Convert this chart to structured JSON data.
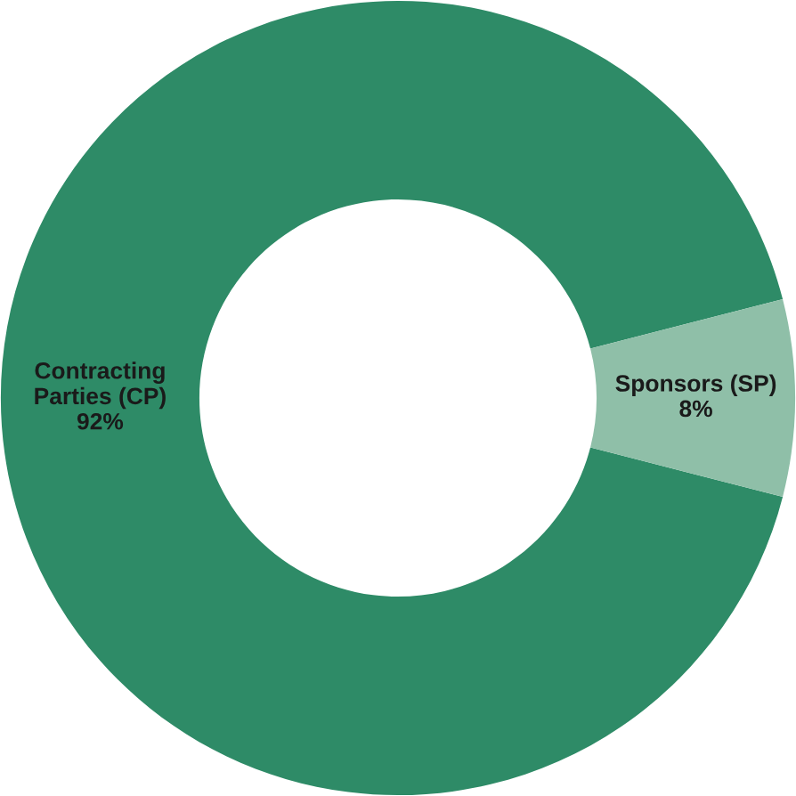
{
  "chart_data": {
    "type": "donut",
    "categories": [
      "Contracting\nParties (CP)",
      "Sponsors (SP)"
    ],
    "values": [
      92,
      8
    ],
    "colors": [
      "#2e8b67",
      "#8fbfa8"
    ],
    "value_labels": [
      "92%",
      "8%"
    ]
  }
}
